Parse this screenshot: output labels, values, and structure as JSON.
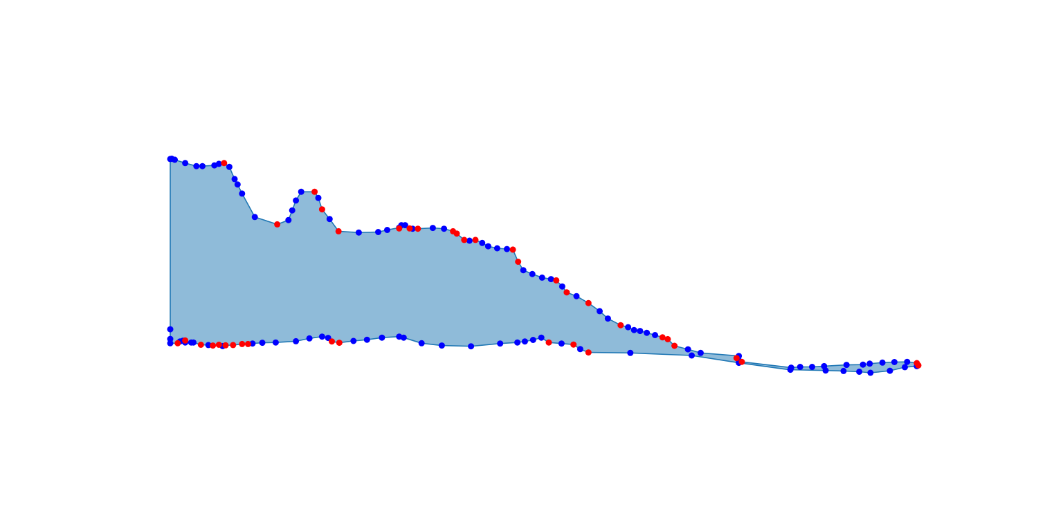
{
  "chart_data": {
    "type": "area",
    "axes_visible": false,
    "grid": false,
    "xlim": [
      0,
      1
    ],
    "ylim": [
      0,
      1
    ],
    "fill_color": "#1f77b4",
    "fill_opacity": 0.5,
    "marker_colors": {
      "blue": "#0000ff",
      "red": "#ff0000"
    },
    "polygon": [
      [
        0.0,
        0.95
      ],
      [
        0.002,
        0.951
      ],
      [
        0.006,
        0.947
      ],
      [
        0.02,
        0.934
      ],
      [
        0.035,
        0.922
      ],
      [
        0.043,
        0.922
      ],
      [
        0.059,
        0.925
      ],
      [
        0.065,
        0.931
      ],
      [
        0.072,
        0.934
      ],
      [
        0.079,
        0.919
      ],
      [
        0.086,
        0.871
      ],
      [
        0.09,
        0.85
      ],
      [
        0.096,
        0.814
      ],
      [
        0.113,
        0.722
      ],
      [
        0.143,
        0.693
      ],
      [
        0.158,
        0.71
      ],
      [
        0.163,
        0.748
      ],
      [
        0.168,
        0.787
      ],
      [
        0.175,
        0.821
      ],
      [
        0.193,
        0.821
      ],
      [
        0.198,
        0.797
      ],
      [
        0.203,
        0.752
      ],
      [
        0.213,
        0.714
      ],
      [
        0.225,
        0.666
      ],
      [
        0.252,
        0.661
      ],
      [
        0.278,
        0.663
      ],
      [
        0.29,
        0.671
      ],
      [
        0.306,
        0.68
      ],
      [
        0.309,
        0.69
      ],
      [
        0.314,
        0.69
      ],
      [
        0.32,
        0.677
      ],
      [
        0.324,
        0.676
      ],
      [
        0.331,
        0.676
      ],
      [
        0.351,
        0.679
      ],
      [
        0.366,
        0.676
      ],
      [
        0.378,
        0.666
      ],
      [
        0.383,
        0.657
      ],
      [
        0.393,
        0.632
      ],
      [
        0.4,
        0.629
      ],
      [
        0.408,
        0.632
      ],
      [
        0.417,
        0.62
      ],
      [
        0.425,
        0.607
      ],
      [
        0.437,
        0.599
      ],
      [
        0.45,
        0.596
      ],
      [
        0.458,
        0.594
      ],
      [
        0.465,
        0.546
      ],
      [
        0.472,
        0.513
      ],
      [
        0.484,
        0.498
      ],
      [
        0.497,
        0.484
      ],
      [
        0.509,
        0.478
      ],
      [
        0.516,
        0.473
      ],
      [
        0.524,
        0.449
      ],
      [
        0.53,
        0.426
      ],
      [
        0.543,
        0.411
      ],
      [
        0.559,
        0.384
      ],
      [
        0.574,
        0.352
      ],
      [
        0.585,
        0.323
      ],
      [
        0.602,
        0.297
      ],
      [
        0.612,
        0.289
      ],
      [
        0.62,
        0.278
      ],
      [
        0.628,
        0.274
      ],
      [
        0.637,
        0.267
      ],
      [
        0.648,
        0.258
      ],
      [
        0.658,
        0.249
      ],
      [
        0.665,
        0.242
      ],
      [
        0.674,
        0.216
      ],
      [
        0.692,
        0.202
      ],
      [
        0.709,
        0.188
      ],
      [
        0.76,
        0.176
      ],
      [
        0.757,
        0.168
      ],
      [
        0.76,
        0.158
      ],
      [
        0.764,
        0.153
      ],
      [
        0.83,
        0.13
      ],
      [
        0.842,
        0.133
      ],
      [
        0.858,
        0.133
      ],
      [
        0.874,
        0.136
      ],
      [
        0.904,
        0.141
      ],
      [
        0.926,
        0.142
      ],
      [
        0.935,
        0.146
      ],
      [
        0.952,
        0.15
      ],
      [
        0.968,
        0.152
      ],
      [
        0.985,
        0.153
      ],
      [
        0.998,
        0.148
      ],
      [
        1.0,
        0.139
      ],
      [
        0.998,
        0.136
      ],
      [
        0.982,
        0.132
      ],
      [
        0.962,
        0.118
      ],
      [
        0.936,
        0.11
      ],
      [
        0.921,
        0.114
      ],
      [
        0.9,
        0.117
      ],
      [
        0.876,
        0.119
      ],
      [
        0.829,
        0.122
      ],
      [
        0.827,
        0.122
      ],
      [
        0.76,
        0.149
      ],
      [
        0.697,
        0.178
      ],
      [
        0.615,
        0.188
      ],
      [
        0.559,
        0.19
      ],
      [
        0.548,
        0.203
      ],
      [
        0.539,
        0.221
      ],
      [
        0.523,
        0.225
      ],
      [
        0.506,
        0.229
      ],
      [
        0.496,
        0.248
      ],
      [
        0.485,
        0.239
      ],
      [
        0.474,
        0.233
      ],
      [
        0.464,
        0.229
      ],
      [
        0.441,
        0.225
      ],
      [
        0.402,
        0.214
      ],
      [
        0.363,
        0.217
      ],
      [
        0.336,
        0.226
      ],
      [
        0.312,
        0.248
      ],
      [
        0.306,
        0.252
      ],
      [
        0.283,
        0.248
      ],
      [
        0.263,
        0.24
      ],
      [
        0.245,
        0.235
      ],
      [
        0.226,
        0.228
      ],
      [
        0.216,
        0.233
      ],
      [
        0.211,
        0.247
      ],
      [
        0.203,
        0.252
      ],
      [
        0.186,
        0.245
      ],
      [
        0.168,
        0.234
      ],
      [
        0.141,
        0.229
      ],
      [
        0.141,
        0.229
      ],
      [
        0.123,
        0.228
      ],
      [
        0.11,
        0.225
      ],
      [
        0.104,
        0.223
      ],
      [
        0.096,
        0.223
      ],
      [
        0.084,
        0.219
      ],
      [
        0.074,
        0.218
      ],
      [
        0.07,
        0.215
      ],
      [
        0.065,
        0.22
      ],
      [
        0.057,
        0.217
      ],
      [
        0.051,
        0.219
      ],
      [
        0.041,
        0.22
      ],
      [
        0.031,
        0.229
      ],
      [
        0.02,
        0.229
      ],
      [
        0.017,
        0.236
      ],
      [
        0.01,
        0.226
      ],
      [
        0.0,
        0.226
      ],
      [
        0.0,
        0.243
      ],
      [
        0.0,
        0.281
      ]
    ],
    "points_blue": [
      [
        0.0,
        0.95
      ],
      [
        0.002,
        0.951
      ],
      [
        0.006,
        0.947
      ],
      [
        0.02,
        0.934
      ],
      [
        0.035,
        0.922
      ],
      [
        0.043,
        0.922
      ],
      [
        0.059,
        0.925
      ],
      [
        0.065,
        0.931
      ],
      [
        0.079,
        0.919
      ],
      [
        0.086,
        0.871
      ],
      [
        0.09,
        0.85
      ],
      [
        0.096,
        0.814
      ],
      [
        0.113,
        0.722
      ],
      [
        0.158,
        0.71
      ],
      [
        0.163,
        0.748
      ],
      [
        0.168,
        0.787
      ],
      [
        0.175,
        0.821
      ],
      [
        0.198,
        0.797
      ],
      [
        0.213,
        0.714
      ],
      [
        0.252,
        0.661
      ],
      [
        0.278,
        0.663
      ],
      [
        0.29,
        0.671
      ],
      [
        0.306,
        0.68
      ],
      [
        0.309,
        0.69
      ],
      [
        0.314,
        0.69
      ],
      [
        0.324,
        0.676
      ],
      [
        0.351,
        0.679
      ],
      [
        0.366,
        0.676
      ],
      [
        0.4,
        0.629
      ],
      [
        0.417,
        0.62
      ],
      [
        0.425,
        0.607
      ],
      [
        0.437,
        0.599
      ],
      [
        0.45,
        0.596
      ],
      [
        0.472,
        0.513
      ],
      [
        0.484,
        0.498
      ],
      [
        0.497,
        0.484
      ],
      [
        0.509,
        0.478
      ],
      [
        0.524,
        0.449
      ],
      [
        0.543,
        0.411
      ],
      [
        0.574,
        0.352
      ],
      [
        0.585,
        0.323
      ],
      [
        0.612,
        0.289
      ],
      [
        0.62,
        0.278
      ],
      [
        0.628,
        0.274
      ],
      [
        0.637,
        0.267
      ],
      [
        0.648,
        0.258
      ],
      [
        0.692,
        0.202
      ],
      [
        0.709,
        0.188
      ],
      [
        0.76,
        0.176
      ],
      [
        0.76,
        0.158
      ],
      [
        0.83,
        0.13
      ],
      [
        0.842,
        0.133
      ],
      [
        0.858,
        0.133
      ],
      [
        0.874,
        0.136
      ],
      [
        0.904,
        0.141
      ],
      [
        0.926,
        0.142
      ],
      [
        0.935,
        0.146
      ],
      [
        0.952,
        0.15
      ],
      [
        0.968,
        0.152
      ],
      [
        0.985,
        0.153
      ],
      [
        0.998,
        0.136
      ],
      [
        0.982,
        0.132
      ],
      [
        0.962,
        0.118
      ],
      [
        0.936,
        0.11
      ],
      [
        0.921,
        0.114
      ],
      [
        0.9,
        0.117
      ],
      [
        0.876,
        0.119
      ],
      [
        0.829,
        0.122
      ],
      [
        0.76,
        0.149
      ],
      [
        0.697,
        0.178
      ],
      [
        0.615,
        0.188
      ],
      [
        0.548,
        0.203
      ],
      [
        0.523,
        0.225
      ],
      [
        0.496,
        0.248
      ],
      [
        0.485,
        0.239
      ],
      [
        0.474,
        0.233
      ],
      [
        0.464,
        0.229
      ],
      [
        0.441,
        0.225
      ],
      [
        0.402,
        0.214
      ],
      [
        0.363,
        0.217
      ],
      [
        0.336,
        0.226
      ],
      [
        0.312,
        0.248
      ],
      [
        0.306,
        0.252
      ],
      [
        0.283,
        0.248
      ],
      [
        0.263,
        0.24
      ],
      [
        0.245,
        0.235
      ],
      [
        0.211,
        0.247
      ],
      [
        0.203,
        0.252
      ],
      [
        0.186,
        0.245
      ],
      [
        0.168,
        0.234
      ],
      [
        0.141,
        0.229
      ],
      [
        0.123,
        0.228
      ],
      [
        0.11,
        0.225
      ],
      [
        0.051,
        0.219
      ],
      [
        0.031,
        0.229
      ],
      [
        0.02,
        0.229
      ],
      [
        0.017,
        0.236
      ],
      [
        0.07,
        0.215
      ],
      [
        0.0,
        0.243
      ],
      [
        0.0,
        0.226
      ],
      [
        0.0,
        0.281
      ],
      [
        0.028,
        0.229
      ],
      [
        0.013,
        0.233
      ]
    ],
    "points_red": [
      [
        0.072,
        0.934
      ],
      [
        0.143,
        0.693
      ],
      [
        0.193,
        0.821
      ],
      [
        0.203,
        0.752
      ],
      [
        0.225,
        0.666
      ],
      [
        0.306,
        0.677
      ],
      [
        0.32,
        0.677
      ],
      [
        0.331,
        0.676
      ],
      [
        0.378,
        0.666
      ],
      [
        0.383,
        0.657
      ],
      [
        0.393,
        0.632
      ],
      [
        0.408,
        0.632
      ],
      [
        0.458,
        0.594
      ],
      [
        0.465,
        0.546
      ],
      [
        0.516,
        0.473
      ],
      [
        0.53,
        0.426
      ],
      [
        0.559,
        0.384
      ],
      [
        0.602,
        0.297
      ],
      [
        0.658,
        0.249
      ],
      [
        0.665,
        0.242
      ],
      [
        0.674,
        0.216
      ],
      [
        0.757,
        0.168
      ],
      [
        0.764,
        0.153
      ],
      [
        0.998,
        0.148
      ],
      [
        1.0,
        0.139
      ],
      [
        0.559,
        0.19
      ],
      [
        0.539,
        0.221
      ],
      [
        0.506,
        0.229
      ],
      [
        0.226,
        0.228
      ],
      [
        0.216,
        0.233
      ],
      [
        0.104,
        0.223
      ],
      [
        0.096,
        0.223
      ],
      [
        0.084,
        0.219
      ],
      [
        0.074,
        0.218
      ],
      [
        0.065,
        0.22
      ],
      [
        0.057,
        0.217
      ],
      [
        0.041,
        0.22
      ],
      [
        0.01,
        0.226
      ],
      [
        0.02,
        0.237
      ]
    ]
  }
}
